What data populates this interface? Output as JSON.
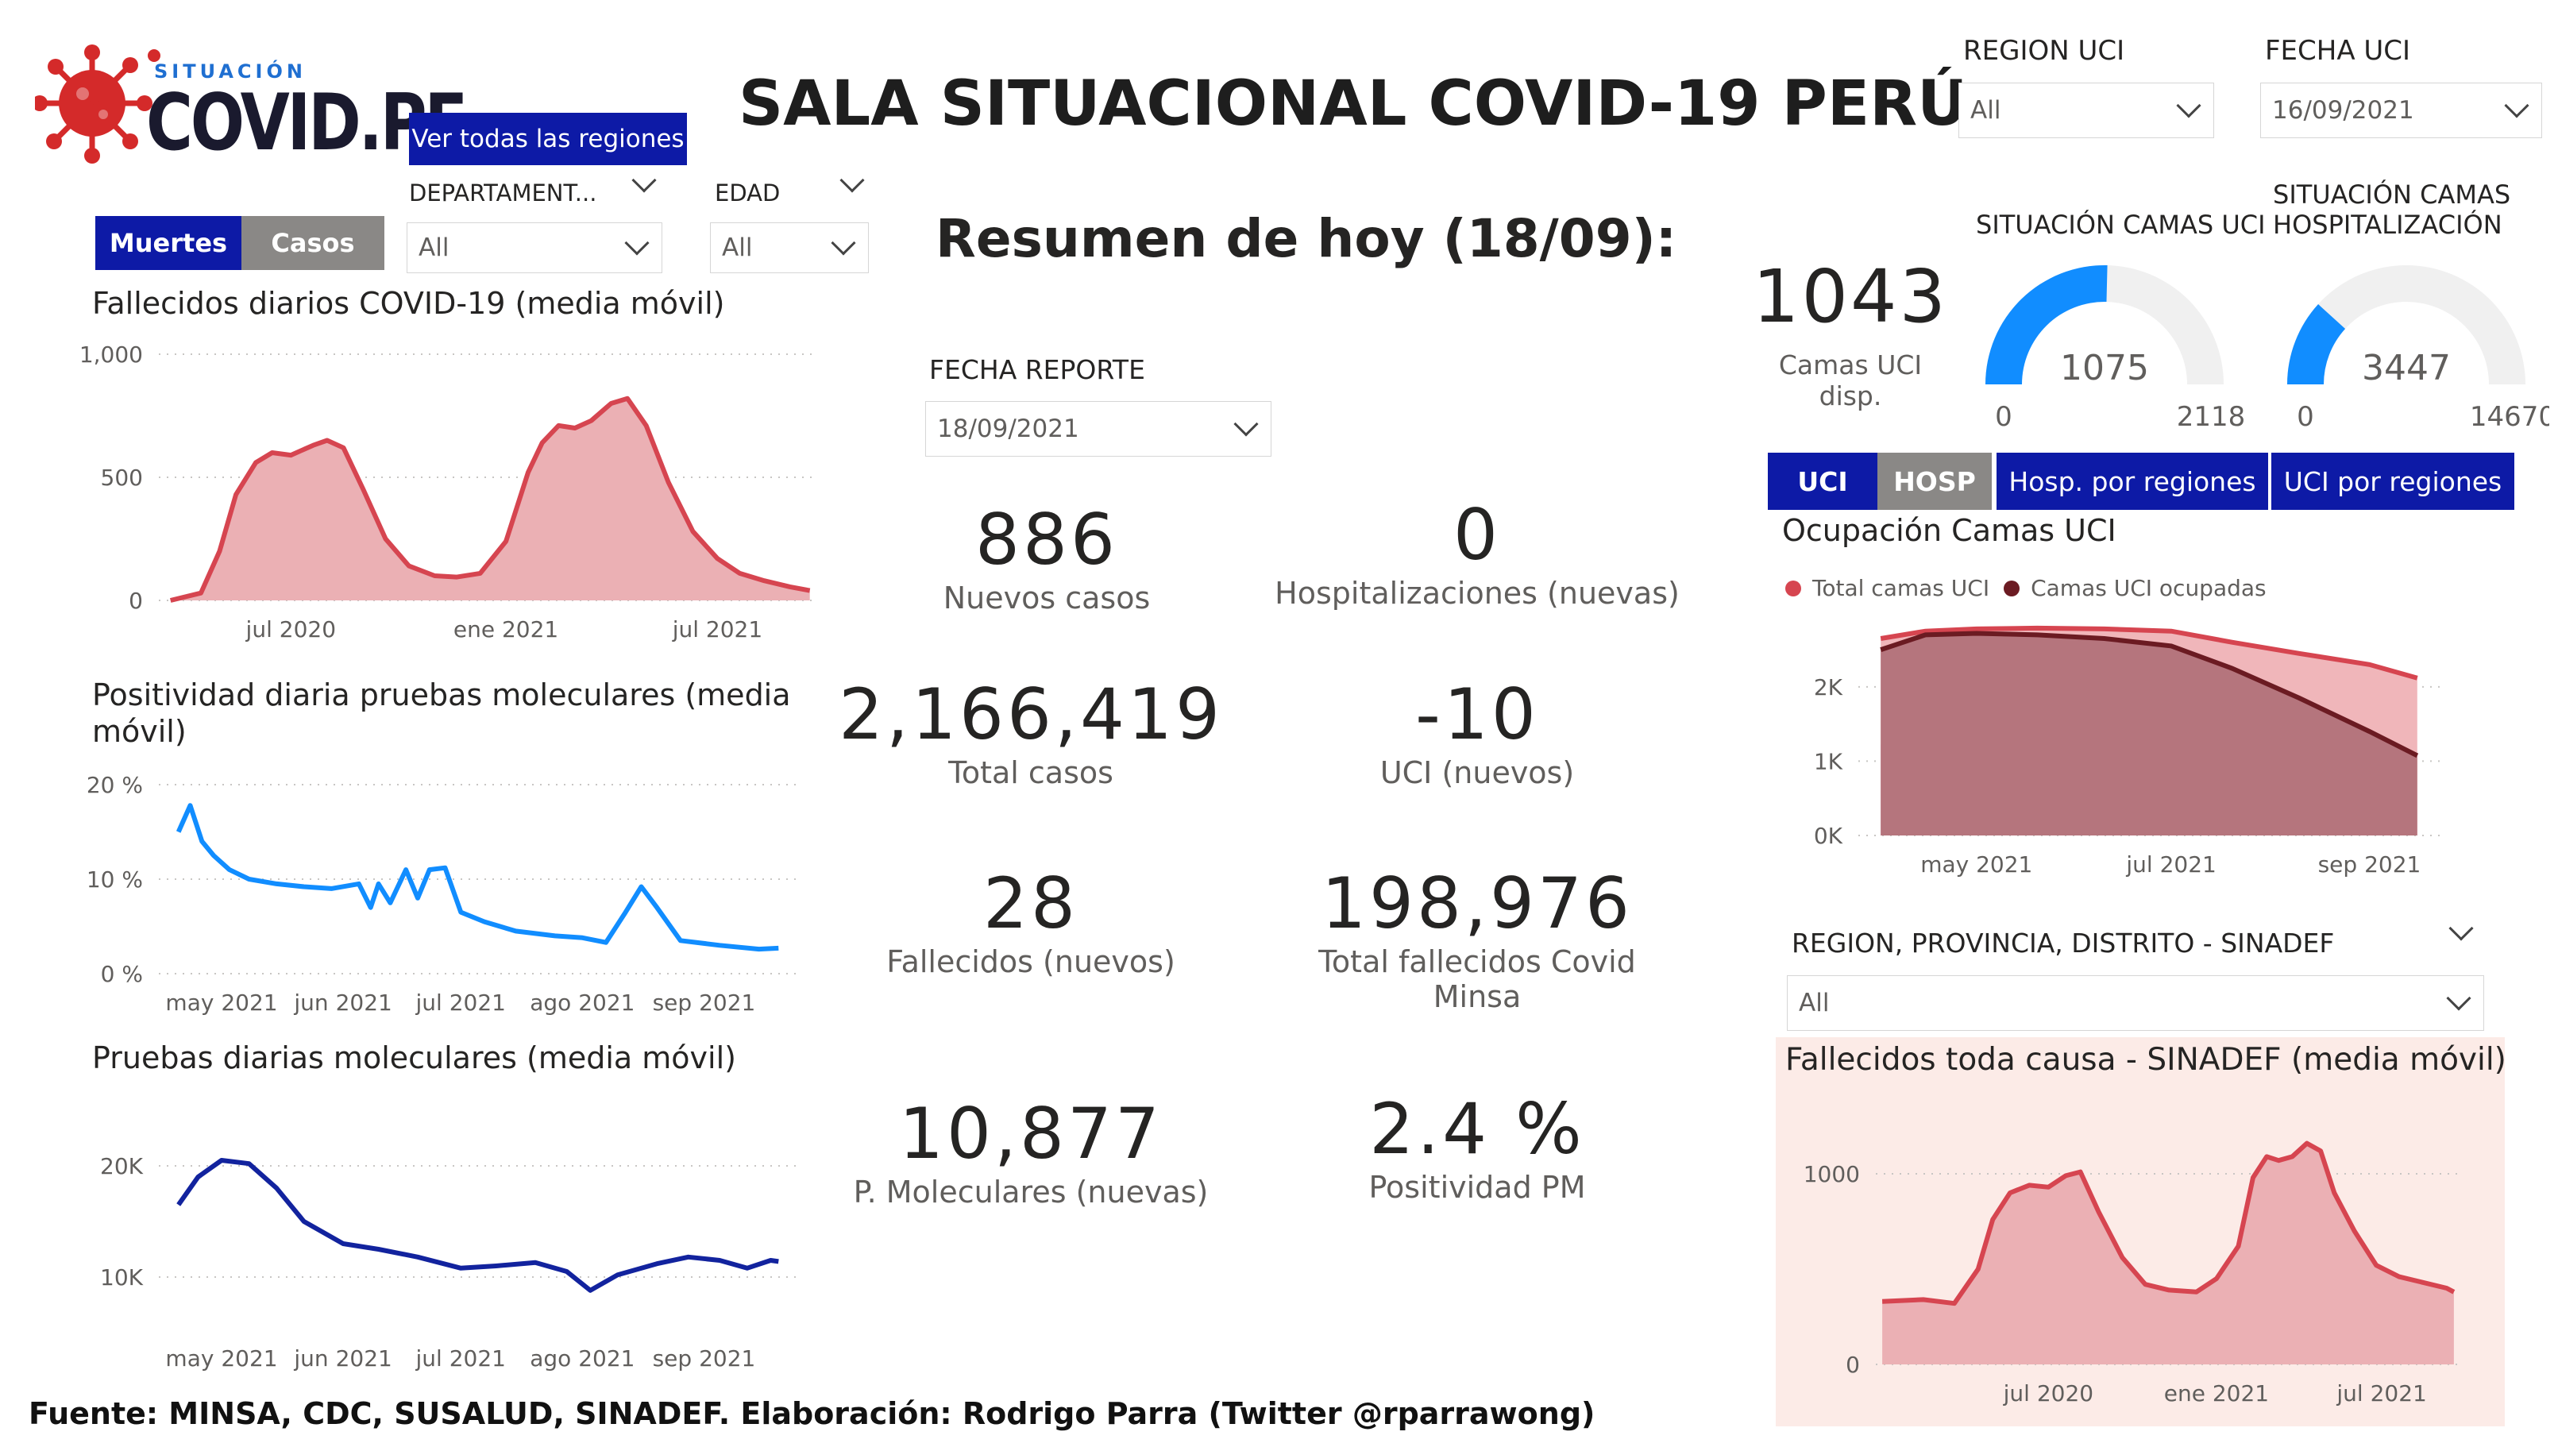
{
  "header": {
    "logo_small": "SITUACIÓN",
    "logo_big": "COVID.PE",
    "title": "SALA SITUACIONAL COVID-19 PERÚ",
    "regions_button": "Ver todas las regiones"
  },
  "filters": {
    "departamento_label": "DEPARTAMENT...",
    "departamento_value": "All",
    "edad_label": "EDAD",
    "edad_value": "All",
    "region_uci_label": "REGION UCI",
    "region_uci_value": "All",
    "fecha_uci_label": "FECHA UCI",
    "fecha_uci_value": "16/09/2021",
    "fecha_reporte_label": "FECHA REPORTE",
    "fecha_reporte_value": "18/09/2021",
    "sinadef_label": "REGION, PROVINCIA, DISTRITO - SINADEF",
    "sinadef_value": "All"
  },
  "toggle": {
    "muertes": "Muertes",
    "casos": "Casos"
  },
  "uci_tabs": {
    "uci": "UCI",
    "hosp": "HOSP",
    "hosp_regiones": "Hosp. por regiones",
    "uci_regiones": "UCI por regiones"
  },
  "summary": {
    "heading": "Resumen de hoy (18/09):",
    "kpis": [
      {
        "value": "886",
        "label": "Nuevos casos"
      },
      {
        "value": "0",
        "label": "Hospitalizaciones (nuevas)"
      },
      {
        "value": "2,166,419",
        "label": "Total casos"
      },
      {
        "value": "-10",
        "label": "UCI (nuevos)"
      },
      {
        "value": "28",
        "label": "Fallecidos  (nuevos)"
      },
      {
        "value": "198,976",
        "label": "Total fallecidos Covid Minsa"
      },
      {
        "value": "10,877",
        "label": "P. Moleculares (nuevas)"
      },
      {
        "value": "2.4 %",
        "label": "Positividad PM"
      }
    ]
  },
  "uci_status": {
    "available_value": "1043",
    "available_label": "Camas UCI disp.",
    "gauge1": {
      "title": "SITUACIÓN CAMAS UCI",
      "value": "1075",
      "min": "0",
      "max": "2118",
      "fraction": 0.5076
    },
    "gauge2": {
      "title": "SITUACIÓN CAMAS HOSPITALIZACIÓN",
      "value": "3447",
      "min": "0",
      "max": "14670",
      "fraction": 0.235
    }
  },
  "footer": "Fuente: MINSA, CDC, SUSALUD, SINADEF. Elaboración: Rodrigo Parra (Twitter @rparrawong)",
  "colors": {
    "deaths": "#d64550",
    "deaths_fill": "#ebb0b4",
    "positivity": "#118dff",
    "tests": "#12239e",
    "uci_occupied": "#6b1b22",
    "panel_bg": "#fcebe7",
    "gauge_fill": "#118dff",
    "gauge_bg": "#f0f0f0"
  },
  "chart_data": [
    {
      "type": "area",
      "title": "Fallecidos diarios COVID-19 (media móvil)",
      "y_ticks": [
        "1,000",
        "500",
        "0"
      ],
      "x_ticks": [
        "jul 2020",
        "ene 2021",
        "jul 2021"
      ],
      "ylim": [
        0,
        1000
      ],
      "x": [
        "2020-03-20",
        "2020-04-15",
        "2020-05-01",
        "2020-05-15",
        "2020-06-01",
        "2020-06-15",
        "2020-07-01",
        "2020-07-20",
        "2020-08-01",
        "2020-08-15",
        "2020-09-01",
        "2020-09-20",
        "2020-10-10",
        "2020-11-01",
        "2020-11-20",
        "2020-12-10",
        "2021-01-01",
        "2021-01-20",
        "2021-02-01",
        "2021-02-15",
        "2021-03-01",
        "2021-03-15",
        "2021-04-01",
        "2021-04-15",
        "2021-05-01",
        "2021-05-20",
        "2021-06-10",
        "2021-07-01",
        "2021-07-20",
        "2021-08-10",
        "2021-09-01",
        "2021-09-18"
      ],
      "y": [
        0,
        30,
        200,
        430,
        560,
        600,
        590,
        630,
        650,
        620,
        450,
        250,
        140,
        100,
        95,
        110,
        240,
        520,
        640,
        710,
        700,
        730,
        800,
        820,
        710,
        480,
        280,
        170,
        110,
        80,
        55,
        40
      ],
      "grid": true
    },
    {
      "type": "line",
      "title": "Positividad diaria pruebas moleculares (media móvil)",
      "y_ticks": [
        "20 %",
        "10 %",
        "0 %"
      ],
      "x_ticks": [
        "may 2021",
        "jun 2021",
        "jul 2021",
        "ago 2021",
        "sep 2021"
      ],
      "ylim": [
        0,
        20
      ],
      "x": [
        "2021-04-20",
        "2021-04-23",
        "2021-04-26",
        "2021-04-29",
        "2021-05-03",
        "2021-05-08",
        "2021-05-15",
        "2021-05-22",
        "2021-05-29",
        "2021-06-05",
        "2021-06-08",
        "2021-06-10",
        "2021-06-13",
        "2021-06-17",
        "2021-06-20",
        "2021-06-23",
        "2021-06-27",
        "2021-07-01",
        "2021-07-04",
        "2021-07-07",
        "2021-07-15",
        "2021-07-25",
        "2021-08-01",
        "2021-08-07",
        "2021-08-12",
        "2021-08-16",
        "2021-08-20",
        "2021-08-26",
        "2021-09-05",
        "2021-09-15",
        "2021-09-20"
      ],
      "y": [
        15,
        17.8,
        14,
        12.5,
        11,
        10,
        9.5,
        9.2,
        9,
        9.5,
        7,
        9.5,
        7.5,
        11,
        8,
        11,
        11.2,
        6.5,
        6,
        5.5,
        4.5,
        4,
        3.8,
        3.3,
        6.5,
        9.2,
        7,
        3.5,
        3,
        2.6,
        2.7
      ],
      "grid": true
    },
    {
      "type": "line",
      "title": "Pruebas diarias moleculares (media móvil)",
      "y_ticks": [
        "20K",
        "10K"
      ],
      "x_ticks": [
        "may 2021",
        "jun 2021",
        "jul 2021",
        "ago 2021",
        "sep 2021"
      ],
      "ylim": [
        7000,
        22000
      ],
      "x": [
        "2021-04-20",
        "2021-04-25",
        "2021-05-01",
        "2021-05-08",
        "2021-05-15",
        "2021-05-22",
        "2021-06-01",
        "2021-06-10",
        "2021-06-20",
        "2021-07-01",
        "2021-07-10",
        "2021-07-20",
        "2021-07-28",
        "2021-08-03",
        "2021-08-10",
        "2021-08-20",
        "2021-08-28",
        "2021-09-05",
        "2021-09-12",
        "2021-09-18",
        "2021-09-20"
      ],
      "y": [
        16500,
        19000,
        20500,
        20200,
        18000,
        15000,
        13000,
        12500,
        11800,
        10800,
        11000,
        11300,
        10500,
        8800,
        10200,
        11200,
        11800,
        11500,
        10800,
        11500,
        11400
      ],
      "grid": true
    },
    {
      "type": "area",
      "title": "Ocupación Camas UCI",
      "legend": [
        "Total camas UCI",
        "Camas UCI ocupadas"
      ],
      "legend_position": "top-left",
      "y_ticks": [
        "2K",
        "1K",
        "0K"
      ],
      "x_ticks": [
        "may 2021",
        "jul 2021",
        "sep 2021"
      ],
      "ylim": [
        0,
        2800
      ],
      "x": [
        "2021-04-01",
        "2021-04-15",
        "2021-05-01",
        "2021-05-20",
        "2021-06-10",
        "2021-07-01",
        "2021-07-20",
        "2021-08-10",
        "2021-09-01",
        "2021-09-16"
      ],
      "series": [
        {
          "name": "Total camas UCI",
          "values": [
            2650,
            2750,
            2780,
            2790,
            2780,
            2750,
            2600,
            2450,
            2300,
            2118
          ]
        },
        {
          "name": "Camas UCI ocupadas",
          "values": [
            2500,
            2700,
            2720,
            2700,
            2650,
            2550,
            2250,
            1850,
            1400,
            1075
          ]
        }
      ],
      "grid": true
    },
    {
      "type": "area",
      "title": "Fallecidos toda causa - SINADEF (media móvil)",
      "y_ticks": [
        "1000",
        "0"
      ],
      "x_ticks": [
        "jul 2020",
        "ene 2021",
        "jul 2021"
      ],
      "ylim": [
        0,
        1200
      ],
      "x": [
        "2020-01-01",
        "2020-02-15",
        "2020-03-20",
        "2020-04-15",
        "2020-05-01",
        "2020-05-20",
        "2020-06-10",
        "2020-07-01",
        "2020-07-20",
        "2020-08-05",
        "2020-08-25",
        "2020-09-20",
        "2020-10-15",
        "2020-11-10",
        "2020-12-10",
        "2021-01-01",
        "2021-01-25",
        "2021-02-10",
        "2021-02-25",
        "2021-03-10",
        "2021-03-25",
        "2021-04-10",
        "2021-04-25",
        "2021-05-10",
        "2021-06-01",
        "2021-06-25",
        "2021-07-20",
        "2021-08-15",
        "2021-09-10",
        "2021-09-18"
      ],
      "y": [
        330,
        340,
        320,
        500,
        760,
        900,
        940,
        930,
        990,
        1010,
        800,
        560,
        420,
        390,
        380,
        450,
        620,
        980,
        1090,
        1070,
        1090,
        1160,
        1120,
        900,
        700,
        520,
        460,
        430,
        400,
        380
      ],
      "grid": true
    }
  ]
}
